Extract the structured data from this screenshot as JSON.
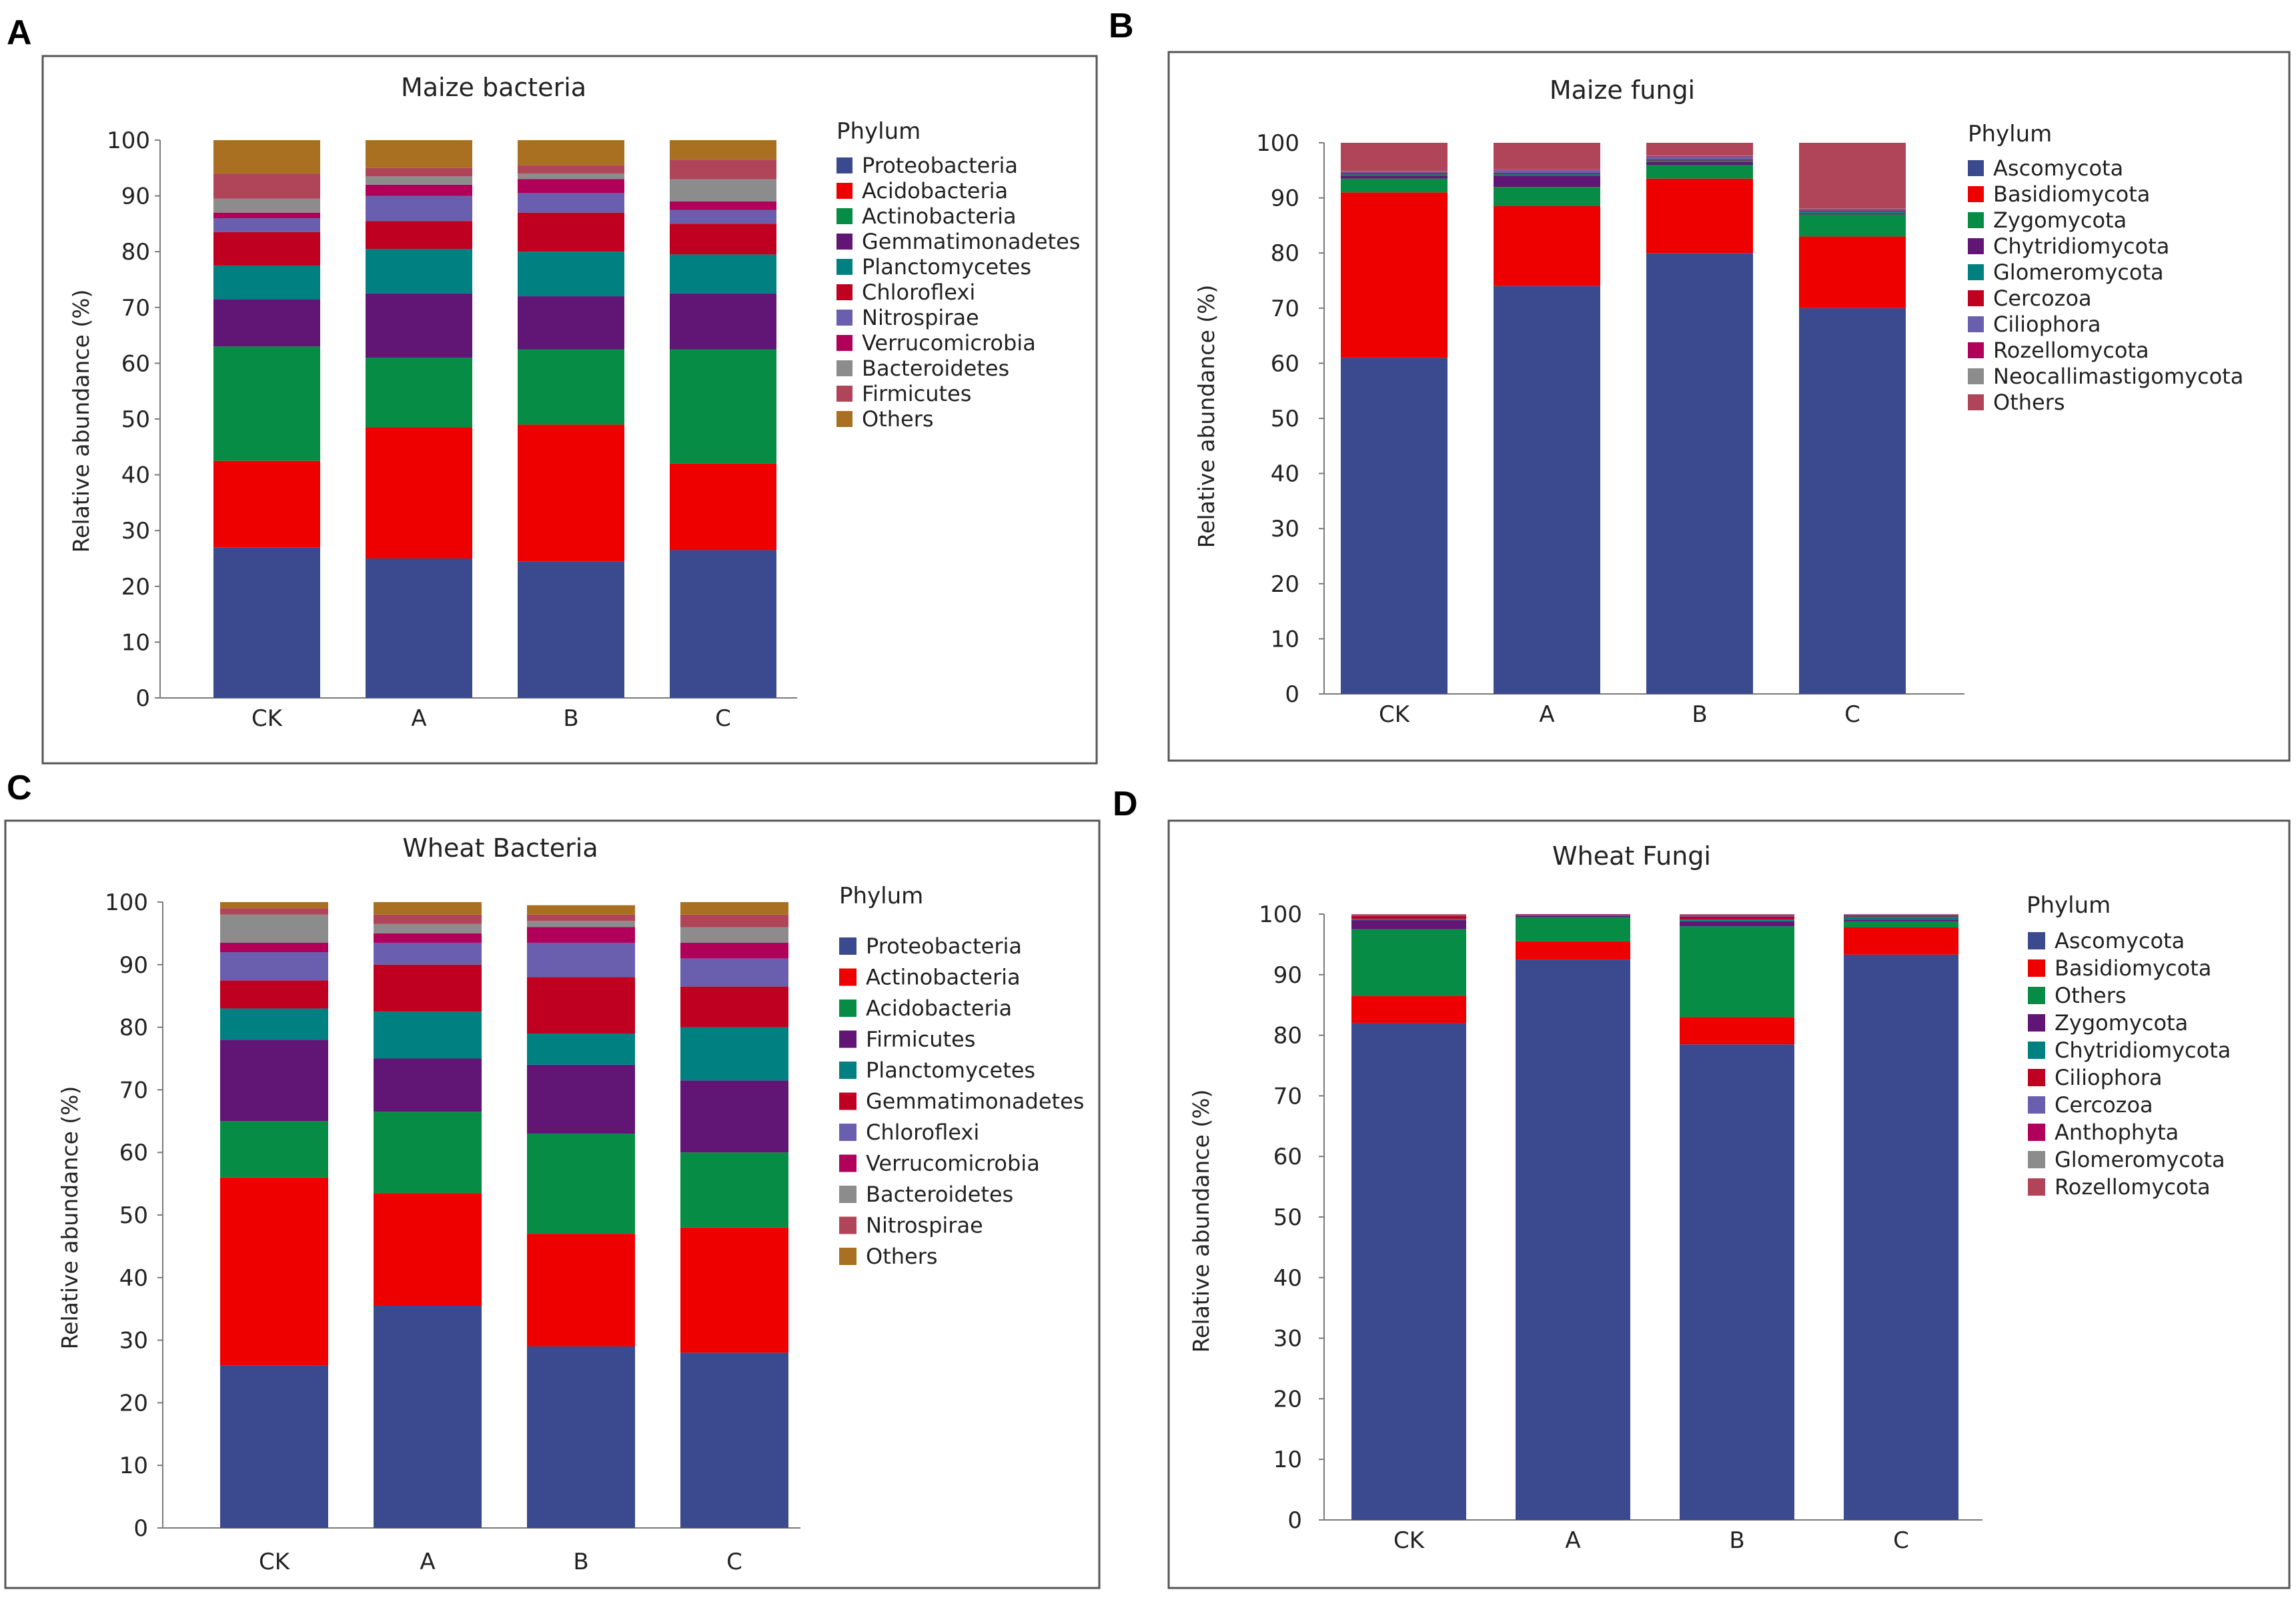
{
  "figure": {
    "panels": [
      {
        "label": "A",
        "title": "Maize bacteria",
        "ylabel": "Relative abundance (%)",
        "legend_title": "Phylum"
      },
      {
        "label": "B",
        "title": "Maize fungi",
        "ylabel": "Relative abundance (%)",
        "legend_title": "Phylum"
      },
      {
        "label": "C",
        "title": "Wheat Bacteria",
        "ylabel": "Relative abundance (%)",
        "legend_title": "Phylum"
      },
      {
        "label": "D",
        "title": "Wheat Fungi",
        "ylabel": "Relative abundance (%)",
        "legend_title": "Phylum"
      }
    ]
  },
  "chart_data": [
    {
      "type": "bar",
      "stacked": true,
      "title": "Maize bacteria",
      "xlabel": "",
      "ylabel": "Relative abundance (%)",
      "ylim": [
        0,
        100
      ],
      "yticks": [
        0,
        10,
        20,
        30,
        40,
        50,
        60,
        70,
        80,
        90,
        100
      ],
      "categories": [
        "CK",
        "A",
        "B",
        "C"
      ],
      "legend_title": "Phylum",
      "series": [
        {
          "name": "Proteobacteria",
          "color": "#3b4a8f",
          "values": [
            27,
            25,
            24.5,
            26.5
          ]
        },
        {
          "name": "Acidobacteria",
          "color": "#ee0000",
          "values": [
            15.5,
            23.5,
            24.5,
            15.5
          ]
        },
        {
          "name": "Actinobacteria",
          "color": "#078c45",
          "values": [
            20.5,
            12.5,
            13.5,
            20.5
          ]
        },
        {
          "name": "Gemmatimonadetes",
          "color": "#611575",
          "values": [
            8.5,
            11.5,
            9.5,
            10
          ]
        },
        {
          "name": "Planctomycetes",
          "color": "#008080",
          "values": [
            6,
            8,
            8,
            7
          ]
        },
        {
          "name": "Chloroflexi",
          "color": "#c00020",
          "values": [
            6,
            5,
            7,
            5.5
          ]
        },
        {
          "name": "Nitrospirae",
          "color": "#6a5fae",
          "values": [
            2.5,
            4.5,
            3.5,
            2.5
          ]
        },
        {
          "name": "Verrucomicrobia",
          "color": "#b0005a",
          "values": [
            1,
            2,
            2.5,
            1.5
          ]
        },
        {
          "name": "Bacteroidetes",
          "color": "#8c8c8c",
          "values": [
            2.5,
            1.5,
            1,
            4
          ]
        },
        {
          "name": "Firmicutes",
          "color": "#b04458",
          "values": [
            4.5,
            1.5,
            1.5,
            3.5
          ]
        },
        {
          "name": "Others",
          "color": "#a87020",
          "values": [
            6,
            5,
            4.5,
            3.5
          ]
        }
      ]
    },
    {
      "type": "bar",
      "stacked": true,
      "title": "Maize fungi",
      "xlabel": "",
      "ylabel": "Relative abundance (%)",
      "ylim": [
        0,
        100
      ],
      "yticks": [
        0,
        10,
        20,
        30,
        40,
        50,
        60,
        70,
        80,
        90,
        100
      ],
      "categories": [
        "CK",
        "A",
        "B",
        "C"
      ],
      "legend_title": "Phylum",
      "series": [
        {
          "name": "Ascomycota",
          "color": "#3b4a8f",
          "values": [
            61,
            74,
            80,
            70
          ]
        },
        {
          "name": "Basidiomycota",
          "color": "#ee0000",
          "values": [
            30,
            14.5,
            13.5,
            13
          ]
        },
        {
          "name": "Zygomycota",
          "color": "#078c45",
          "values": [
            2.5,
            3.5,
            2.5,
            4
          ]
        },
        {
          "name": "Chytridiomycota",
          "color": "#611575",
          "values": [
            0.5,
            2,
            0.5,
            0.2
          ]
        },
        {
          "name": "Glomeromycota",
          "color": "#008080",
          "values": [
            0.3,
            0.3,
            0.3,
            0.3
          ]
        },
        {
          "name": "Cercozoa",
          "color": "#c00020",
          "values": [
            0.2,
            0.2,
            0.2,
            0.2
          ]
        },
        {
          "name": "Ciliophora",
          "color": "#6a5fae",
          "values": [
            0.2,
            0.5,
            0.5,
            0.2
          ]
        },
        {
          "name": "Rozellomycota",
          "color": "#b0005a",
          "values": [
            0.1,
            0.1,
            0.1,
            0.1
          ]
        },
        {
          "name": "Neocallimastigomycota",
          "color": "#8c8c8c",
          "values": [
            0.1,
            0.1,
            0.1,
            0.1
          ]
        },
        {
          "name": "Others",
          "color": "#b04458",
          "values": [
            5.1,
            4.8,
            2.3,
            11.9
          ]
        }
      ]
    },
    {
      "type": "bar",
      "stacked": true,
      "title": "Wheat Bacteria",
      "xlabel": "",
      "ylabel": "Relative abundance (%)",
      "ylim": [
        0,
        100
      ],
      "yticks": [
        0,
        10,
        20,
        30,
        40,
        50,
        60,
        70,
        80,
        90,
        100
      ],
      "categories": [
        "CK",
        "A",
        "B",
        "C"
      ],
      "legend_title": "Phylum",
      "series": [
        {
          "name": "Proteobacteria",
          "color": "#3b4a8f",
          "values": [
            26,
            35.5,
            29,
            28
          ]
        },
        {
          "name": "Actinobacteria",
          "color": "#ee0000",
          "values": [
            30,
            18,
            18,
            20
          ]
        },
        {
          "name": "Acidobacteria",
          "color": "#078c45",
          "values": [
            9,
            13,
            16,
            12
          ]
        },
        {
          "name": "Firmicutes",
          "color": "#611575",
          "values": [
            13,
            8.5,
            11,
            11.5
          ]
        },
        {
          "name": "Planctomycetes",
          "color": "#008080",
          "values": [
            5,
            7.5,
            5,
            8.5
          ]
        },
        {
          "name": "Gemmatimonadetes",
          "color": "#c00020",
          "values": [
            4.5,
            7.5,
            9,
            6.5
          ]
        },
        {
          "name": "Chloroflexi",
          "color": "#6a5fae",
          "values": [
            4.5,
            3.5,
            5.5,
            4.5
          ]
        },
        {
          "name": "Verrucomicrobia",
          "color": "#b0005a",
          "values": [
            1.5,
            1.5,
            2.5,
            2.5
          ]
        },
        {
          "name": "Bacteroidetes",
          "color": "#8c8c8c",
          "values": [
            4.5,
            1.5,
            1,
            2.5
          ]
        },
        {
          "name": "Nitrospirae",
          "color": "#b04458",
          "values": [
            1,
            1.5,
            1,
            2
          ]
        },
        {
          "name": "Others",
          "color": "#a87020",
          "values": [
            1,
            2,
            1.5,
            2
          ]
        }
      ]
    },
    {
      "type": "bar",
      "stacked": true,
      "title": "Wheat Fungi",
      "xlabel": "",
      "ylabel": "Relative abundance (%)",
      "ylim": [
        0,
        100
      ],
      "yticks": [
        0,
        10,
        20,
        30,
        40,
        50,
        60,
        70,
        80,
        90,
        100
      ],
      "categories": [
        "CK",
        "A",
        "B",
        "C"
      ],
      "legend_title": "Phylum",
      "series": [
        {
          "name": "Ascomycota",
          "color": "#3b4a8f",
          "values": [
            82,
            92.5,
            78.5,
            93.3
          ]
        },
        {
          "name": "Basidiomycota",
          "color": "#ee0000",
          "values": [
            4.5,
            3,
            4.5,
            4.5
          ]
        },
        {
          "name": "Others",
          "color": "#078c45",
          "values": [
            11,
            4,
            15,
            1
          ]
        },
        {
          "name": "Zygomycota",
          "color": "#611575",
          "values": [
            1.5,
            0.2,
            0.8,
            0.3
          ]
        },
        {
          "name": "Chytridiomycota",
          "color": "#008080",
          "values": [
            0.2,
            0.1,
            0.3,
            0.5
          ]
        },
        {
          "name": "Ciliophora",
          "color": "#c00020",
          "values": [
            0.5,
            0.1,
            0.5,
            0.2
          ]
        },
        {
          "name": "Cercozoa",
          "color": "#6a5fae",
          "values": [
            0.1,
            0.05,
            0.2,
            0.1
          ]
        },
        {
          "name": "Anthophyta",
          "color": "#b0005a",
          "values": [
            0.1,
            0.05,
            0.1,
            0.05
          ]
        },
        {
          "name": "Glomeromycota",
          "color": "#8c8c8c",
          "values": [
            0.05,
            0,
            0.05,
            0.05
          ]
        },
        {
          "name": "Rozellomycota",
          "color": "#b04458",
          "values": [
            0.05,
            0,
            0.05,
            0
          ]
        }
      ]
    }
  ]
}
